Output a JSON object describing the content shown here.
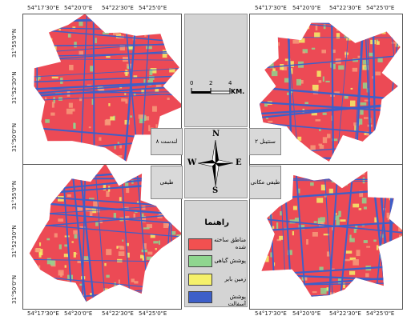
{
  "map_panels": [
    {
      "name": "top-left",
      "seed": 3
    },
    {
      "name": "top-right",
      "seed": 7
    },
    {
      "name": "bottom-left",
      "seed": 11
    },
    {
      "name": "bottom-right",
      "seed": 17
    }
  ],
  "top_longitudes": [
    "54°17'30\"E",
    "54°20'0\"E",
    "54°22'30\"E",
    "54°25'0\"E"
  ],
  "latitudes_top": [
    "31°55'0\"N",
    "31°52'30\"N",
    "31°50'0\"N"
  ],
  "latitudes_bottom": [
    "31°55'0\"N",
    "31°52'30\"N",
    "31°50'0\"N"
  ],
  "labels": {
    "landsat": "لندست ۸",
    "sentinel": "سنتینل ۲",
    "spectral_left": "طیفی",
    "spectral_right": "طیفی مکانی"
  },
  "scale_bar": {
    "ticks": [
      "0",
      "2",
      "4"
    ],
    "unit": "KM."
  },
  "north_arrow": {
    "n": "N",
    "s": "S",
    "e": "E",
    "w": "W"
  },
  "legend": {
    "title": "راهنما",
    "items": [
      {
        "label": "مناطق ساخته شده",
        "color": "#f25050"
      },
      {
        "label": "پوشش گیاهی",
        "color": "#8fd68f"
      },
      {
        "label": "زمین بایر",
        "color": "#f5f06a"
      },
      {
        "label": "پوشش آسفالت",
        "color": "#3d5fc9"
      }
    ]
  },
  "colors": {
    "urban": "#ec4a55",
    "veg": "#8fd68f",
    "bare": "#f5f06a",
    "asphalt": "#3d5fc9"
  }
}
